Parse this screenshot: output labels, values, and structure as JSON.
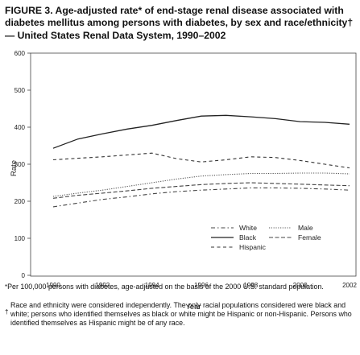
{
  "title": "FIGURE 3. Age-adjusted rate* of end-stage renal disease associated with diabetes mellitus among persons with diabetes, by sex and race/ethnicity† — United States Renal Data System, 1990–2002",
  "footnotes": [
    {
      "mark": "*",
      "text": "Per 100,000 persons with diabetes, age-adjusted on the basis of the 2000 U.S. standard population."
    },
    {
      "mark": "†",
      "text": "Race and ethnicity were considered independently. The only racial populations considered were black and white; persons who identified themselves as black or white might be Hispanic or non-Hispanic. Persons who identified themselves as Hispanic might be of any race."
    }
  ],
  "chart_data": {
    "type": "line",
    "xlabel": "Year",
    "ylabel": "Rate",
    "xlim": [
      1990,
      2002
    ],
    "ylim": [
      0,
      600
    ],
    "xticks": [
      1990,
      1992,
      1994,
      1996,
      1998,
      2000,
      2002
    ],
    "yticks": [
      0,
      100,
      200,
      300,
      400,
      500,
      600
    ],
    "grid": false,
    "legend_position": "bottom-center",
    "x": [
      1990,
      1991,
      1992,
      1993,
      1994,
      1995,
      1996,
      1997,
      1998,
      1999,
      2000,
      2001,
      2002
    ],
    "series": [
      {
        "name": "White",
        "values": [
          185,
          195,
          205,
          212,
          220,
          226,
          230,
          233,
          236,
          236,
          235,
          233,
          230
        ],
        "color": "#444444",
        "dash": "5,3,1.5,3",
        "width": 1.1
      },
      {
        "name": "Black",
        "values": [
          343,
          368,
          382,
          395,
          405,
          418,
          430,
          432,
          428,
          423,
          415,
          413,
          408
        ],
        "color": "#222222",
        "dash": "",
        "width": 1.3
      },
      {
        "name": "Hispanic",
        "values": [
          312,
          316,
          320,
          325,
          330,
          315,
          306,
          312,
          320,
          318,
          310,
          300,
          290
        ],
        "color": "#333333",
        "dash": "4,3.5",
        "width": 1.1
      },
      {
        "name": "Male",
        "values": [
          213,
          222,
          230,
          240,
          250,
          260,
          268,
          272,
          275,
          275,
          276,
          276,
          274
        ],
        "color": "#555555",
        "dash": "1.2,1.6",
        "width": 1.1
      },
      {
        "name": "Female",
        "values": [
          208,
          216,
          222,
          228,
          235,
          240,
          245,
          248,
          250,
          248,
          246,
          244,
          242
        ],
        "color": "#444444",
        "dash": "5,2.5",
        "width": 1.1
      }
    ]
  }
}
